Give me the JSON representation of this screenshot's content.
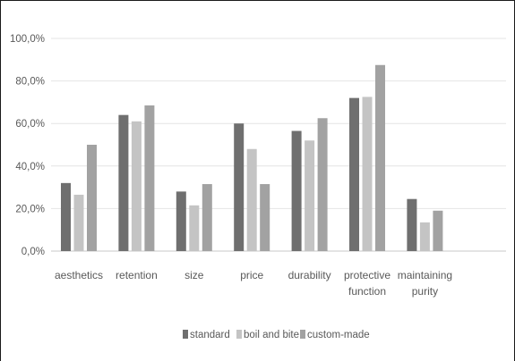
{
  "chart_data": {
    "type": "bar",
    "categories": [
      [
        "aesthetics"
      ],
      [
        "retention"
      ],
      [
        "size"
      ],
      [
        "price"
      ],
      [
        "durability"
      ],
      [
        "protective",
        "function"
      ],
      [
        "maintaining",
        "purity"
      ]
    ],
    "series": [
      {
        "name": "standard",
        "color": "#6f6f6f",
        "values": [
          32.0,
          64.0,
          28.0,
          60.0,
          56.5,
          72.0,
          24.5
        ]
      },
      {
        "name": "boil and bite",
        "color": "#c4c4c4",
        "values": [
          26.5,
          61.0,
          21.5,
          48.0,
          52.0,
          72.5,
          13.5
        ]
      },
      {
        "name": "custom-made",
        "color": "#a2a2a2",
        "values": [
          50.0,
          68.5,
          31.5,
          31.5,
          62.5,
          87.5,
          19.0
        ]
      }
    ],
    "yticks": [
      "0,0%",
      "20,0%",
      "40,0%",
      "60,0%",
      "80,0%",
      "100,0%"
    ],
    "ylim": [
      0,
      100
    ],
    "gridlines": true,
    "legend_position": "bottom"
  }
}
